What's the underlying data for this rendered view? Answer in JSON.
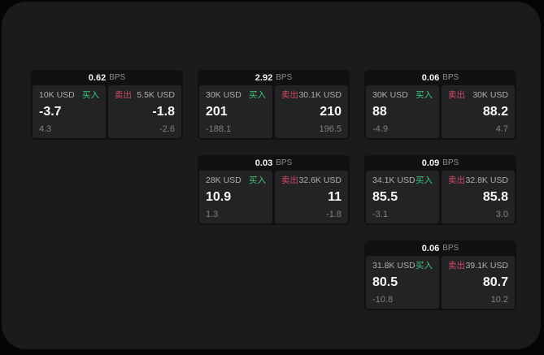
{
  "colors": {
    "buy_green": "#3fc57d",
    "sell_red": "#d04a66",
    "panel_bg": "#1b1b1d",
    "card_bg": "#111113",
    "tile_bg": "#232326"
  },
  "cards": [
    {
      "bps": "0.62",
      "unit": "BPS",
      "buy": {
        "amount": "10K USD",
        "tag": "买入",
        "value": "-3.7",
        "sub": "4.3"
      },
      "sell": {
        "tag": "卖出",
        "amount": "5.5K USD",
        "value": "-1.8",
        "sub": "-2.6"
      }
    },
    {
      "bps": "2.92",
      "unit": "BPS",
      "buy": {
        "amount": "30K USD",
        "tag": "买入",
        "value": "201",
        "sub": "-188.1"
      },
      "sell": {
        "tag": "卖出",
        "amount": "30.1K USD",
        "value": "210",
        "sub": "196.5"
      }
    },
    {
      "bps": "0.06",
      "unit": "BPS",
      "buy": {
        "amount": "30K USD",
        "tag": "买入",
        "value": "88",
        "sub": "-4.9"
      },
      "sell": {
        "tag": "卖出",
        "amount": "30K USD",
        "value": "88.2",
        "sub": "4.7"
      }
    },
    {
      "bps": "0.03",
      "unit": "BPS",
      "buy": {
        "amount": "28K USD",
        "tag": "买入",
        "value": "10.9",
        "sub": "1.3"
      },
      "sell": {
        "tag": "卖出",
        "amount": "32.6K USD",
        "value": "11",
        "sub": "-1.8"
      }
    },
    {
      "bps": "0.09",
      "unit": "BPS",
      "buy": {
        "amount": "34.1K USD",
        "tag": "买入",
        "value": "85.5",
        "sub": "-3.1"
      },
      "sell": {
        "tag": "卖出",
        "amount": "32.8K USD",
        "value": "85.8",
        "sub": "3.0"
      }
    },
    {
      "bps": "0.06",
      "unit": "BPS",
      "buy": {
        "amount": "31.8K USD",
        "tag": "买入",
        "value": "80.5",
        "sub": "-10.8"
      },
      "sell": {
        "tag": "卖出",
        "amount": "39.1K USD",
        "value": "80.7",
        "sub": "10.2"
      }
    }
  ]
}
